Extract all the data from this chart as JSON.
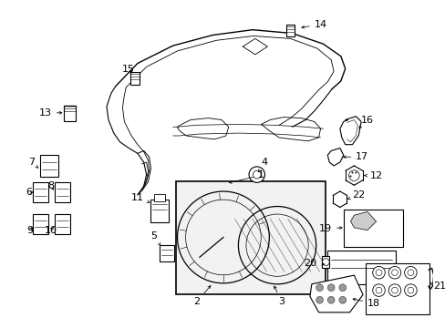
{
  "background_color": "#ffffff",
  "fig_width": 4.89,
  "fig_height": 3.6,
  "dpi": 100,
  "parts": {
    "label_fontsize": 8,
    "arrow_lw": 0.7,
    "arrow_ms": 5
  }
}
